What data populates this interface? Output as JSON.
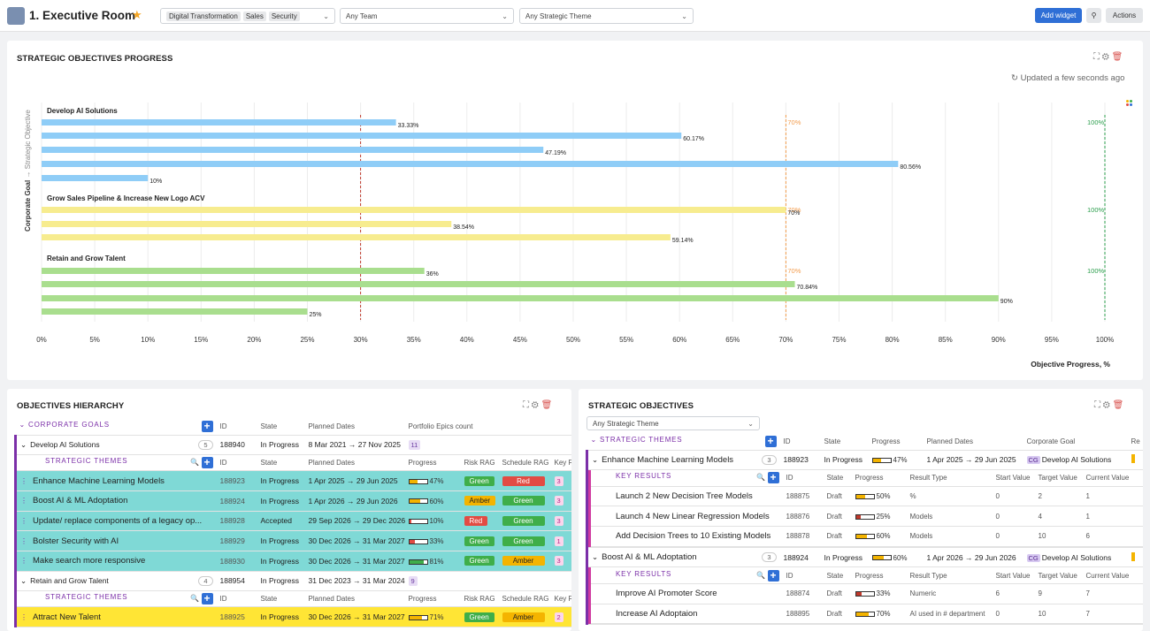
{
  "topbar": {
    "title": "1. Executive Room",
    "chips": [
      "Digital Transformation",
      "Sales",
      "Security"
    ],
    "team_placeholder": "Any Team",
    "theme_placeholder": "Any Strategic Theme",
    "add_widget": "Add widget",
    "actions": "Actions"
  },
  "chart_panel": {
    "title": "STRATEGIC OBJECTIVES PROGRESS",
    "updated": "Updated a few seconds ago"
  },
  "chart_data": {
    "type": "bar",
    "orientation": "horizontal",
    "ylabel": "Corporate Goal → Strategic Objective",
    "xlabel": "Objective Progress, %",
    "xlim": [
      0,
      100
    ],
    "ticks": [
      "0%",
      "5%",
      "10%",
      "15%",
      "20%",
      "25%",
      "30%",
      "35%",
      "40%",
      "45%",
      "50%",
      "55%",
      "60%",
      "65%",
      "70%",
      "75%",
      "80%",
      "85%",
      "90%",
      "95%",
      "100%"
    ],
    "thresholds": [
      {
        "label": "30%",
        "value": 30,
        "color": "#c0392b"
      },
      {
        "label": "70%",
        "value": 70,
        "color": "#f39c4d"
      },
      {
        "label": "100%",
        "value": 100,
        "color": "#2a9d4b"
      }
    ],
    "groups": [
      {
        "name": "Develop AI Solutions",
        "color": "#8fcdf7",
        "values": [
          33.33,
          60.17,
          47.19,
          80.56,
          10
        ],
        "labels": [
          "33.33%",
          "60.17%",
          "47.19%",
          "80.56%",
          "10%"
        ]
      },
      {
        "name": "Grow Sales Pipeline & Increase New Logo ACV",
        "color": "#f7ec8f",
        "values": [
          70,
          38.54,
          59.14
        ],
        "labels": [
          "70%",
          "38.54%",
          "59.14%"
        ]
      },
      {
        "name": "Retain and Grow Talent",
        "color": "#a9de8e",
        "values": [
          36,
          70.84,
          90,
          25
        ],
        "labels": [
          "36%",
          "70.84%",
          "90%",
          "25%"
        ]
      }
    ],
    "zero_label": "0%"
  },
  "hierarchy": {
    "title": "OBJECTIVES HIERARCHY",
    "corporate_goals": "CORPORATE GOALS",
    "strategic_themes": "STRATEGIC THEMES",
    "cols_top": [
      "ID",
      "State",
      "Planned Dates",
      "Portfolio Epics count"
    ],
    "cols_sub": [
      "ID",
      "State",
      "Planned Dates",
      "Progress",
      "Risk RAG",
      "Schedule RAG",
      "Key R"
    ],
    "goals": [
      {
        "name": "Develop AI Solutions",
        "count": "5",
        "id": "188940",
        "state": "In Progress",
        "dates": "8 Mar 2021 → 27 Nov 2025",
        "epics": "11"
      },
      {
        "name": "Retain and Grow Talent",
        "count": "4",
        "id": "188954",
        "state": "In Progress",
        "dates": "31 Dec 2023 → 31 Mar 2024",
        "epics": "9"
      }
    ],
    "rows": [
      {
        "name": "Enhance Machine Learning Models",
        "id": "188923",
        "state": "In Progress",
        "dates": "1 Apr 2025 → 29 Jun 2025",
        "progress": "47%",
        "p": 47,
        "risk": "Green",
        "sched": "Red",
        "kr": "3",
        "color": "#f4b400"
      },
      {
        "name": "Boost AI & ML Adoptation",
        "id": "188924",
        "state": "In Progress",
        "dates": "1 Apr 2026 → 29 Jun 2026",
        "progress": "60%",
        "p": 60,
        "risk": "Amber",
        "sched": "Green",
        "kr": "3",
        "color": "#f4b400"
      },
      {
        "name": "Update/ replace components of a legacy op...",
        "id": "188928",
        "state": "Accepted",
        "dates": "29 Sep 2026 → 29 Dec 2026",
        "progress": "10%",
        "p": 10,
        "risk": "Red",
        "sched": "Green",
        "kr": "3",
        "color": "#e24b43"
      },
      {
        "name": "Bolster Security with AI",
        "id": "188929",
        "state": "In Progress",
        "dates": "30 Dec 2026 → 31 Mar 2027",
        "progress": "33%",
        "p": 33,
        "risk": "Green",
        "sched": "Green",
        "kr": "1",
        "color": "#e24b43"
      },
      {
        "name": "Make search more responsive",
        "id": "188930",
        "state": "In Progress",
        "dates": "30 Dec 2026 → 31 Mar 2027",
        "progress": "81%",
        "p": 81,
        "risk": "Green",
        "sched": "Amber",
        "kr": "3",
        "color": "#3fae49"
      }
    ],
    "row2": {
      "name": "Attract New Talent",
      "id": "188925",
      "state": "In Progress",
      "dates": "30 Dec 2026 → 31 Mar 2027",
      "progress": "71%",
      "p": 71,
      "risk": "Green",
      "sched": "Amber",
      "kr": "2",
      "color": "#f4b400"
    }
  },
  "objectives": {
    "title": "STRATEGIC OBJECTIVES",
    "filter": "Any Strategic Theme",
    "themes": "STRATEGIC THEMES",
    "key_results": "KEY RESULTS",
    "cols": [
      "ID",
      "State",
      "Progress",
      "Planned Dates",
      "Corporate Goal",
      "Re"
    ],
    "kr_cols": [
      "ID",
      "State",
      "Progress",
      "Result Type",
      "Start Value",
      "Target Value",
      "Current Value"
    ],
    "obj": [
      {
        "name": "Enhance Machine Learning Models",
        "count": "3",
        "id": "188923",
        "state": "In Progress",
        "progress": "47%",
        "p": 47,
        "dates": "1 Apr 2025 → 29 Jun 2025",
        "goal_tag": "CG",
        "goal": "Develop AI Solutions",
        "krs": [
          {
            "name": "Launch 2 New Decision Tree Models",
            "id": "188875",
            "state": "Draft",
            "progress": "50%",
            "p": 50,
            "type": "%",
            "start": "0",
            "target": "2",
            "current": "1",
            "color": "#f4b400"
          },
          {
            "name": "Launch 4 New Linear Regression Models",
            "id": "188876",
            "state": "Draft",
            "progress": "25%",
            "p": 25,
            "type": "Models",
            "start": "0",
            "target": "4",
            "current": "1",
            "color": "#c0392b"
          },
          {
            "name": "Add Decision Trees to 10 Existing Models",
            "id": "188878",
            "state": "Draft",
            "progress": "60%",
            "p": 60,
            "type": "Models",
            "start": "0",
            "target": "10",
            "current": "6",
            "color": "#f4b400"
          }
        ]
      },
      {
        "name": "Boost AI & ML Adoptation",
        "count": "3",
        "id": "188924",
        "state": "In Progress",
        "progress": "60%",
        "p": 60,
        "dates": "1 Apr 2026 → 29 Jun 2026",
        "goal_tag": "CG",
        "goal": "Develop AI Solutions",
        "krs": [
          {
            "name": "Improve AI Promoter Score",
            "id": "188874",
            "state": "Draft",
            "progress": "33%",
            "p": 33,
            "type": "Numeric",
            "start": "6",
            "target": "9",
            "current": "7",
            "color": "#c0392b"
          },
          {
            "name": "Increase AI Adoptaion",
            "id": "188895",
            "state": "Draft",
            "progress": "70%",
            "p": 70,
            "type": "AI used in # department",
            "start": "0",
            "target": "10",
            "current": "7",
            "color": "#f4b400"
          }
        ]
      }
    ]
  }
}
